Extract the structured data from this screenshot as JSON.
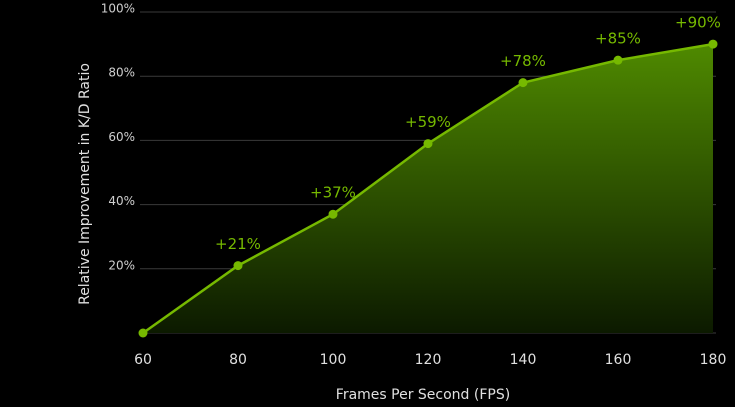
{
  "chart_data": {
    "type": "area",
    "x": [
      60,
      80,
      100,
      120,
      140,
      160,
      180
    ],
    "values": [
      0,
      21,
      37,
      59,
      78,
      85,
      90
    ],
    "value_labels": [
      null,
      "+21%",
      "+37%",
      "+59%",
      "+78%",
      "+85%",
      "+90%"
    ],
    "color": "#76b900",
    "xlabel": "Frames Per Second (FPS)",
    "ylabel": "Relative Improvement in K/D Ratio",
    "xlim": [
      60,
      180
    ],
    "xticks": [
      60,
      80,
      100,
      120,
      140,
      160,
      180
    ],
    "ylim": [
      0,
      100
    ],
    "yticks": [
      {
        "value": 20,
        "label": "20%"
      },
      {
        "value": 40,
        "label": "40%"
      },
      {
        "value": 60,
        "label": "60%"
      },
      {
        "value": 80,
        "label": "80%"
      },
      {
        "value": 100,
        "label": "100%"
      }
    ],
    "grid": true
  }
}
